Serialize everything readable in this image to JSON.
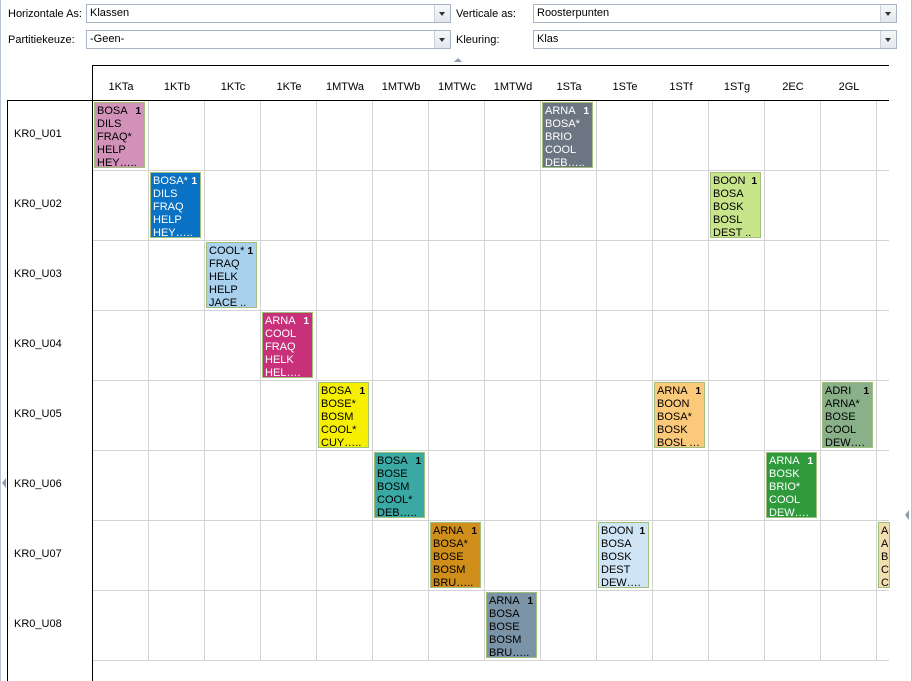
{
  "toolbar": {
    "horizontal_label": "Horizontale As:",
    "horizontal_value": "Klassen",
    "vertical_label": "Verticale as:",
    "vertical_value": "Roosterpunten",
    "partition_label": "Partitiekeuze:",
    "partition_value": "-Geen-",
    "color_label": "Kleuring:",
    "color_value": "Klas"
  },
  "columns": [
    "1KTa",
    "1KTb",
    "1KTc",
    "1KTe",
    "1MTWa",
    "1MTWb",
    "1MTWc",
    "1MTWd",
    "1STa",
    "1STe",
    "1STf",
    "1STg",
    "2EC",
    "2GL"
  ],
  "rows": [
    "KR0_U01",
    "KR0_U02",
    "KR0_U03",
    "KR0_U04",
    "KR0_U05",
    "KR0_U06",
    "KR0_U07",
    "KR0_U08"
  ],
  "cells": [
    {
      "row": 0,
      "col": 0,
      "count": "1",
      "color": "#d291b8",
      "dark": false,
      "lines": [
        "BOSA",
        "DILS",
        "FRAQ*",
        "HELP",
        "HEY….."
      ]
    },
    {
      "row": 0,
      "col": 8,
      "count": "1",
      "color": "#6b7682",
      "dark": true,
      "lines": [
        "ARNA",
        "BOSA*",
        "BRIO",
        "COOL",
        "DEB….."
      ]
    },
    {
      "row": 1,
      "col": 1,
      "count": "1",
      "color": "#0a72c4",
      "dark": true,
      "lines": [
        "BOSA*",
        "DILS",
        "FRAQ",
        "HELP",
        "HEY….."
      ]
    },
    {
      "row": 1,
      "col": 11,
      "count": "1",
      "color": "#c9e58c",
      "dark": false,
      "lines": [
        "BOON",
        "BOSA",
        "BOSK",
        "BOSL",
        "DEST .."
      ]
    },
    {
      "row": 2,
      "col": 2,
      "count": "1",
      "color": "#a9d1ee",
      "dark": false,
      "lines": [
        "COOL*",
        "FRAQ",
        "HELK",
        "HELP",
        "JACE .."
      ]
    },
    {
      "row": 3,
      "col": 3,
      "count": "1",
      "color": "#c8317a",
      "dark": true,
      "lines": [
        "ARNA",
        "COOL",
        "FRAQ",
        "HELK",
        "HEL…."
      ]
    },
    {
      "row": 4,
      "col": 4,
      "count": "1",
      "color": "#f6f000",
      "dark": false,
      "lines": [
        "BOSA",
        "BOSE*",
        "BOSM",
        "COOL*",
        "CUY….."
      ]
    },
    {
      "row": 4,
      "col": 10,
      "count": "1",
      "color": "#fbc97a",
      "dark": false,
      "lines": [
        "ARNA",
        "BOON",
        "BOSA*",
        "BOSK",
        "BOSL …"
      ]
    },
    {
      "row": 4,
      "col": 13,
      "count": "1",
      "color": "#8ab08a",
      "dark": false,
      "lines": [
        "ADRI",
        "ARNA*",
        "BOSE",
        "COOL",
        "DEW…."
      ]
    },
    {
      "row": 5,
      "col": 5,
      "count": "1",
      "color": "#3aa9a4",
      "dark": false,
      "lines": [
        "BOSA",
        "BOSE",
        "BOSM",
        "COOL*",
        "DEB….."
      ]
    },
    {
      "row": 5,
      "col": 12,
      "count": "1",
      "color": "#2e9a3c",
      "dark": true,
      "lines": [
        "ARNA",
        "BOSK",
        "BRIO*",
        "COOL",
        "DEW…."
      ]
    },
    {
      "row": 6,
      "col": 6,
      "count": "1",
      "color": "#d08f1a",
      "dark": false,
      "lines": [
        "ARNA",
        "BOSA*",
        "BOSE",
        "BOSM",
        "BRU….."
      ]
    },
    {
      "row": 6,
      "col": 9,
      "count": "1",
      "color": "#cfe5f6",
      "dark": false,
      "lines": [
        "BOON",
        "BOSA",
        "BOSK",
        "DEST",
        "DEW…."
      ]
    },
    {
      "row": 6,
      "col": 14,
      "count": "",
      "color": "#f2dfb1",
      "dark": false,
      "lines": [
        "AR",
        "AI",
        "BO",
        "CO",
        "CO"
      ]
    },
    {
      "row": 7,
      "col": 7,
      "count": "1",
      "color": "#7b93a6",
      "dark": false,
      "lines": [
        "ARNA",
        "BOSA",
        "BOSE",
        "BOSM",
        "BRU….."
      ]
    }
  ]
}
